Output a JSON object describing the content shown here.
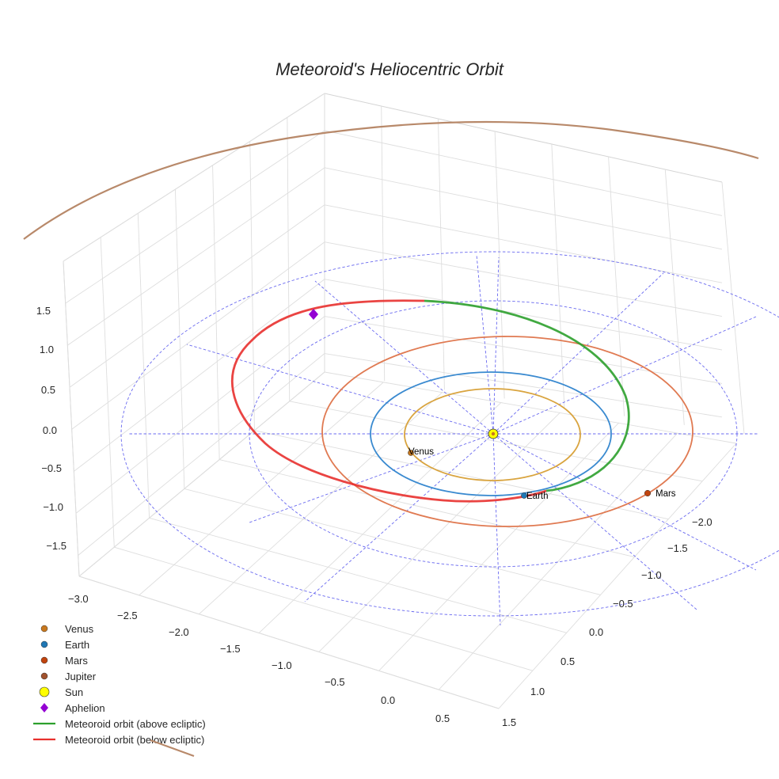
{
  "chart_data": {
    "type": "line3d",
    "title": "Meteoroid's Heliocentric Orbit",
    "axes": {
      "x": {
        "ticks": [
          "−3.0",
          "−2.5",
          "−2.0",
          "−1.5",
          "−1.0",
          "−0.5",
          "0.0",
          "0.5"
        ]
      },
      "y": {
        "ticks": [
          "−2.0",
          "−1.5",
          "−1.0",
          "−0.5",
          "0.0",
          "0.5",
          "1.0",
          "1.5"
        ]
      },
      "z": {
        "ticks": [
          "1.5",
          "1.0",
          "0.5",
          "0.0",
          "−0.5",
          "−1.0",
          "−1.5"
        ]
      }
    },
    "planets": [
      {
        "name": "Venus",
        "label": "Venus",
        "color": "#c8781e",
        "orbit_color": "#d9a43f",
        "semi_major_au": 0.72
      },
      {
        "name": "Earth",
        "label": "Earth",
        "color": "#1f77b4",
        "orbit_color": "#3a8ad0",
        "semi_major_au": 1.0
      },
      {
        "name": "Mars",
        "label": "Mars",
        "color": "#c1440e",
        "orbit_color": "#e07a52",
        "semi_major_au": 1.52
      },
      {
        "name": "Jupiter",
        "label": "",
        "color": "#a0522d",
        "orbit_color": "#b8896a",
        "semi_major_au": 5.2
      }
    ],
    "sun": {
      "name": "Sun",
      "color": "#ffff00"
    },
    "aphelion": {
      "name": "Aphelion",
      "color": "#9400d3"
    },
    "meteoroid_orbit": [
      {
        "name": "Meteoroid orbit (above ecliptic)",
        "color": "#2ca02c"
      },
      {
        "name": "Meteoroid orbit (below ecliptic)",
        "color": "#e8302d"
      }
    ],
    "legend": {
      "position": "lower-left",
      "entries": [
        {
          "label": "Venus",
          "marker": "circle",
          "color": "#c8781e"
        },
        {
          "label": "Earth",
          "marker": "circle",
          "color": "#1f77b4"
        },
        {
          "label": "Mars",
          "marker": "circle",
          "color": "#c1440e"
        },
        {
          "label": "Jupiter",
          "marker": "circle",
          "color": "#a0522d"
        },
        {
          "label": "Sun",
          "marker": "circle-large",
          "color": "#ffff00"
        },
        {
          "label": "Aphelion",
          "marker": "diamond",
          "color": "#9400d3"
        },
        {
          "label": "Meteoroid orbit (above ecliptic)",
          "marker": "line",
          "color": "#2ca02c"
        },
        {
          "label": "Meteoroid orbit (below ecliptic)",
          "marker": "line",
          "color": "#e8302d"
        }
      ]
    }
  }
}
